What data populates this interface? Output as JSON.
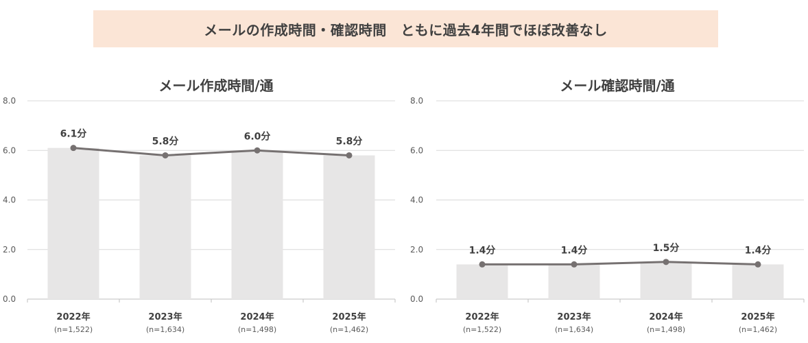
{
  "banner": {
    "text": "メールの作成時間・確認時間　ともに過去4年間でほぼ改善なし",
    "background": "#fbe5d6"
  },
  "colors": {
    "bar": "#e7e6e6",
    "line": "#767171",
    "grid": "#d9d9d9",
    "text": "#404040"
  },
  "chart_data": [
    {
      "type": "bar",
      "overlay_line": true,
      "title": "メール作成時間/通",
      "categories": [
        "2022年",
        "2023年",
        "2024年",
        "2025年"
      ],
      "sample_sizes": [
        "(n=1,522)",
        "(n=1,634)",
        "(n=1,498)",
        "(n=1,462)"
      ],
      "values": [
        6.1,
        5.8,
        6.0,
        5.8
      ],
      "data_labels": [
        "6.1分",
        "5.8分",
        "6.0分",
        "5.8分"
      ],
      "yticks": [
        "0.0",
        "2.0",
        "4.0",
        "6.0",
        "8.0"
      ],
      "ylim": [
        0,
        8
      ],
      "grid": true
    },
    {
      "type": "bar",
      "overlay_line": true,
      "title": "メール確認時間/通",
      "categories": [
        "2022年",
        "2023年",
        "2024年",
        "2025年"
      ],
      "sample_sizes": [
        "(n=1,522)",
        "(n=1,634)",
        "(n=1,498)",
        "(n=1,462)"
      ],
      "values": [
        1.4,
        1.4,
        1.5,
        1.4
      ],
      "data_labels": [
        "1.4分",
        "1.4分",
        "1.5分",
        "1.4分"
      ],
      "yticks": [
        "0.0",
        "2.0",
        "4.0",
        "6.0",
        "8.0"
      ],
      "ylim": [
        0,
        8
      ],
      "grid": true
    }
  ]
}
